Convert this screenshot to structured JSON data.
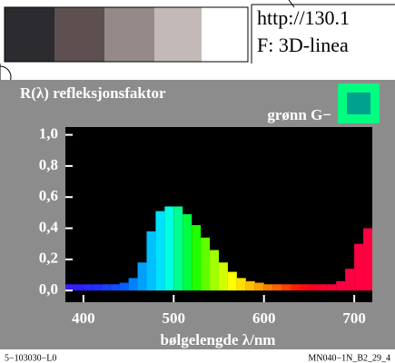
{
  "header": {
    "url": "http://130.1",
    "subtitle": "F: 3D-linea"
  },
  "chart_data": {
    "type": "bar",
    "title": "R(λ) refleksjonsfaktor",
    "legend_label": "grønn G−",
    "x_label": "bølgelengde λ/nm",
    "footer_left": "5−103030−L0",
    "footer_right": "MN040−1N_B2_29_4",
    "x": [
      385,
      395,
      405,
      415,
      425,
      435,
      445,
      455,
      465,
      475,
      485,
      495,
      505,
      515,
      525,
      535,
      545,
      555,
      565,
      575,
      585,
      595,
      605,
      615,
      625,
      635,
      645,
      655,
      665,
      675,
      685,
      695,
      705,
      715
    ],
    "values": [
      0.04,
      0.04,
      0.04,
      0.04,
      0.04,
      0.04,
      0.05,
      0.08,
      0.18,
      0.38,
      0.51,
      0.54,
      0.54,
      0.49,
      0.42,
      0.34,
      0.26,
      0.18,
      0.12,
      0.08,
      0.06,
      0.05,
      0.04,
      0.04,
      0.04,
      0.04,
      0.04,
      0.04,
      0.04,
      0.04,
      0.06,
      0.14,
      0.3,
      0.4
    ],
    "colors": [
      "#3a1aff",
      "#3020ff",
      "#2828ff",
      "#2030ff",
      "#1840ff",
      "#1050ff",
      "#0060ff",
      "#0080ff",
      "#00a0ff",
      "#00c0ff",
      "#00e0ff",
      "#00ffe0",
      "#00ff90",
      "#00ff40",
      "#20ff00",
      "#60ff00",
      "#a0ff00",
      "#d0ff00",
      "#ffff00",
      "#ffe000",
      "#ffc000",
      "#ffa000",
      "#ff8000",
      "#ff6000",
      "#ff4000",
      "#ff2000",
      "#ff1010",
      "#ff0020",
      "#ff0030",
      "#ff0040",
      "#ff0040",
      "#ff0040",
      "#ff0040",
      "#ff0040"
    ],
    "xlim": [
      380,
      720
    ],
    "ylim": [
      -0.075,
      1.05
    ],
    "xticks": [
      400,
      500,
      600,
      700
    ],
    "yticks": [
      {
        "value": 0,
        "label": "0,0"
      },
      {
        "value": 0.2,
        "label": "0,2"
      },
      {
        "value": 0.4,
        "label": "0,4"
      },
      {
        "value": 0.6,
        "label": "0,6"
      },
      {
        "value": 0.8,
        "label": "0,8"
      },
      {
        "value": 1,
        "label": "1,0"
      }
    ]
  }
}
